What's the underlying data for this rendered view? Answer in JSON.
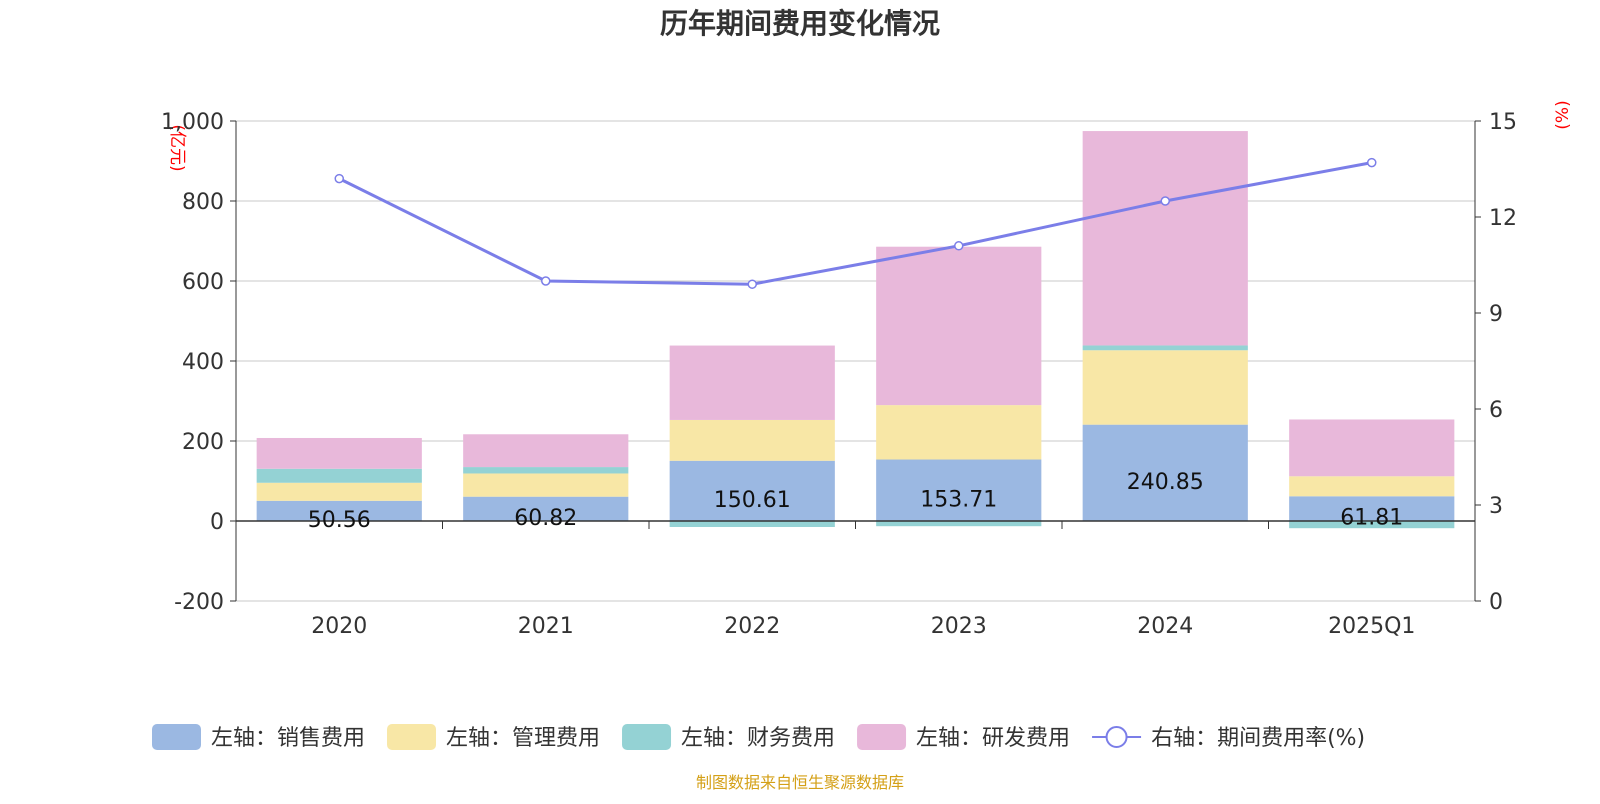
{
  "chart_data": {
    "type": "bar",
    "title": "历年期间费用变化情况",
    "left_unit": "(亿元)",
    "right_unit": "(%)",
    "categories": [
      "2020",
      "2021",
      "2022",
      "2023",
      "2024",
      "2025Q1"
    ],
    "left_ylim": [
      -200,
      1000
    ],
    "left_ticks": [
      "-200",
      "0",
      "200",
      "400",
      "600",
      "800",
      "1,000"
    ],
    "left_tick_values": [
      -200,
      0,
      200,
      400,
      600,
      800,
      1000
    ],
    "right_ylim": [
      0,
      15
    ],
    "right_ticks": [
      "0",
      "3",
      "6",
      "9",
      "12",
      "15"
    ],
    "right_tick_values": [
      0,
      3,
      6,
      9,
      12,
      15
    ],
    "series": [
      {
        "name": "左轴：销售费用",
        "kind": "bar",
        "axis": "left",
        "color": "#9bb8e2",
        "values": [
          50.56,
          60.82,
          150.61,
          153.71,
          240.85,
          61.81
        ],
        "labels": [
          "50.56",
          "60.82",
          "150.61",
          "153.71",
          "240.85",
          "61.81"
        ]
      },
      {
        "name": "左轴：管理费用",
        "kind": "bar",
        "axis": "left",
        "color": "#f8e7a6",
        "values": [
          45,
          58,
          102,
          136,
          186,
          50
        ]
      },
      {
        "name": "左轴：财务费用",
        "kind": "bar",
        "axis": "left",
        "color": "#94d2d4",
        "values": [
          35,
          16,
          -15,
          -13,
          12,
          -18
        ]
      },
      {
        "name": "左轴：研发费用",
        "kind": "bar",
        "axis": "left",
        "color": "#e8b8da",
        "values": [
          77,
          82,
          186,
          396,
          536,
          142
        ]
      },
      {
        "name": "右轴：期间费用率(%)",
        "kind": "line",
        "axis": "right",
        "color": "#7b7ee8",
        "values": [
          13.2,
          10.0,
          9.9,
          11.1,
          12.5,
          13.7
        ]
      }
    ],
    "source": "制图数据来自恒生聚源数据库"
  }
}
